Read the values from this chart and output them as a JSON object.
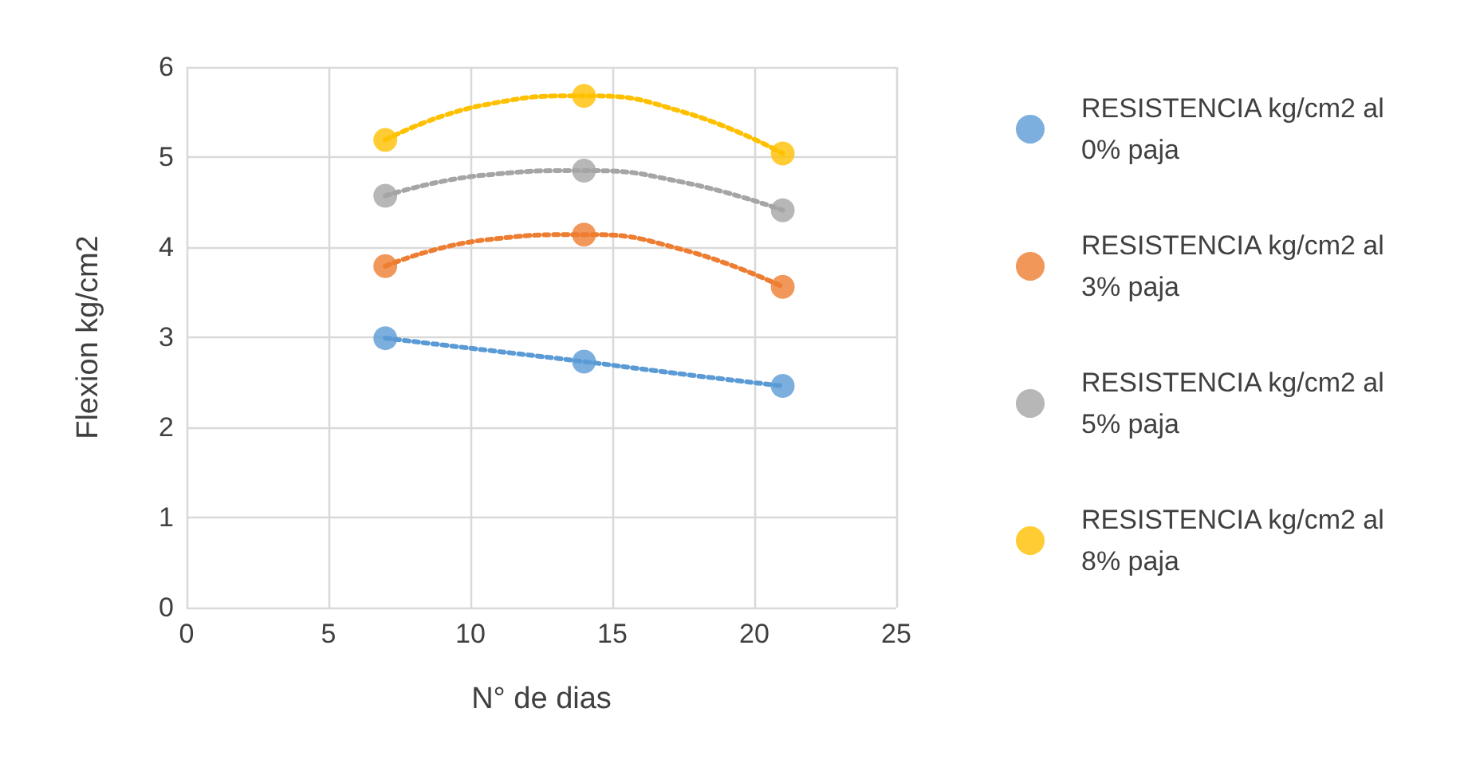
{
  "chart_data": {
    "type": "scatter",
    "xlabel": "N° de dias",
    "ylabel": "Flexion kg/cm2",
    "xlim": [
      0,
      25
    ],
    "xticks": [
      0,
      5,
      10,
      15,
      20,
      25
    ],
    "ylim": [
      0,
      6
    ],
    "yticks": [
      0,
      1,
      2,
      3,
      4,
      5,
      6
    ],
    "grid": true,
    "legend": "right",
    "marker": "circle",
    "series": [
      {
        "name": "RESISTENCIA kg/cm2 al 0% paja",
        "color": "#5b9bd5",
        "x": [
          7,
          14,
          21
        ],
        "values": [
          2.99,
          2.73,
          2.46
        ]
      },
      {
        "name": "RESISTENCIA kg/cm2 al 3% paja",
        "color": "#ed7d31",
        "x": [
          7,
          14,
          21
        ],
        "values": [
          3.79,
          4.14,
          3.56
        ]
      },
      {
        "name": "RESISTENCIA kg/cm2 al 5% paja",
        "color": "#a5a5a5",
        "x": [
          7,
          14,
          21
        ],
        "values": [
          4.57,
          4.85,
          4.41
        ]
      },
      {
        "name": "RESISTENCIA kg/cm2 al 8% paja",
        "color": "#ffc000",
        "x": [
          7,
          14,
          21
        ],
        "values": [
          5.19,
          5.68,
          5.04
        ]
      },
      {
        "type": "line",
        "line_style": "dotted",
        "marker": "none",
        "color": "#5b9bd5",
        "x": [
          7,
          10.5,
          14,
          17.5,
          21
        ],
        "values": [
          2.99,
          2.86,
          2.73,
          2.59,
          2.46
        ]
      },
      {
        "type": "line",
        "line_style": "dotted",
        "marker": "none",
        "color": "#ed7d31",
        "x": [
          7,
          10.5,
          14,
          17.5,
          21
        ],
        "values": [
          3.79,
          4.08,
          4.14,
          3.97,
          3.56
        ]
      },
      {
        "type": "line",
        "line_style": "dotted",
        "marker": "none",
        "color": "#a5a5a5",
        "x": [
          7,
          10.5,
          14,
          17.5,
          21
        ],
        "values": [
          4.57,
          4.8,
          4.85,
          4.72,
          4.41
        ]
      },
      {
        "type": "line",
        "line_style": "dotted",
        "marker": "none",
        "color": "#ffc000",
        "x": [
          7,
          10.5,
          14,
          17.5,
          21
        ],
        "values": [
          5.19,
          5.58,
          5.68,
          5.5,
          5.04
        ]
      }
    ]
  }
}
